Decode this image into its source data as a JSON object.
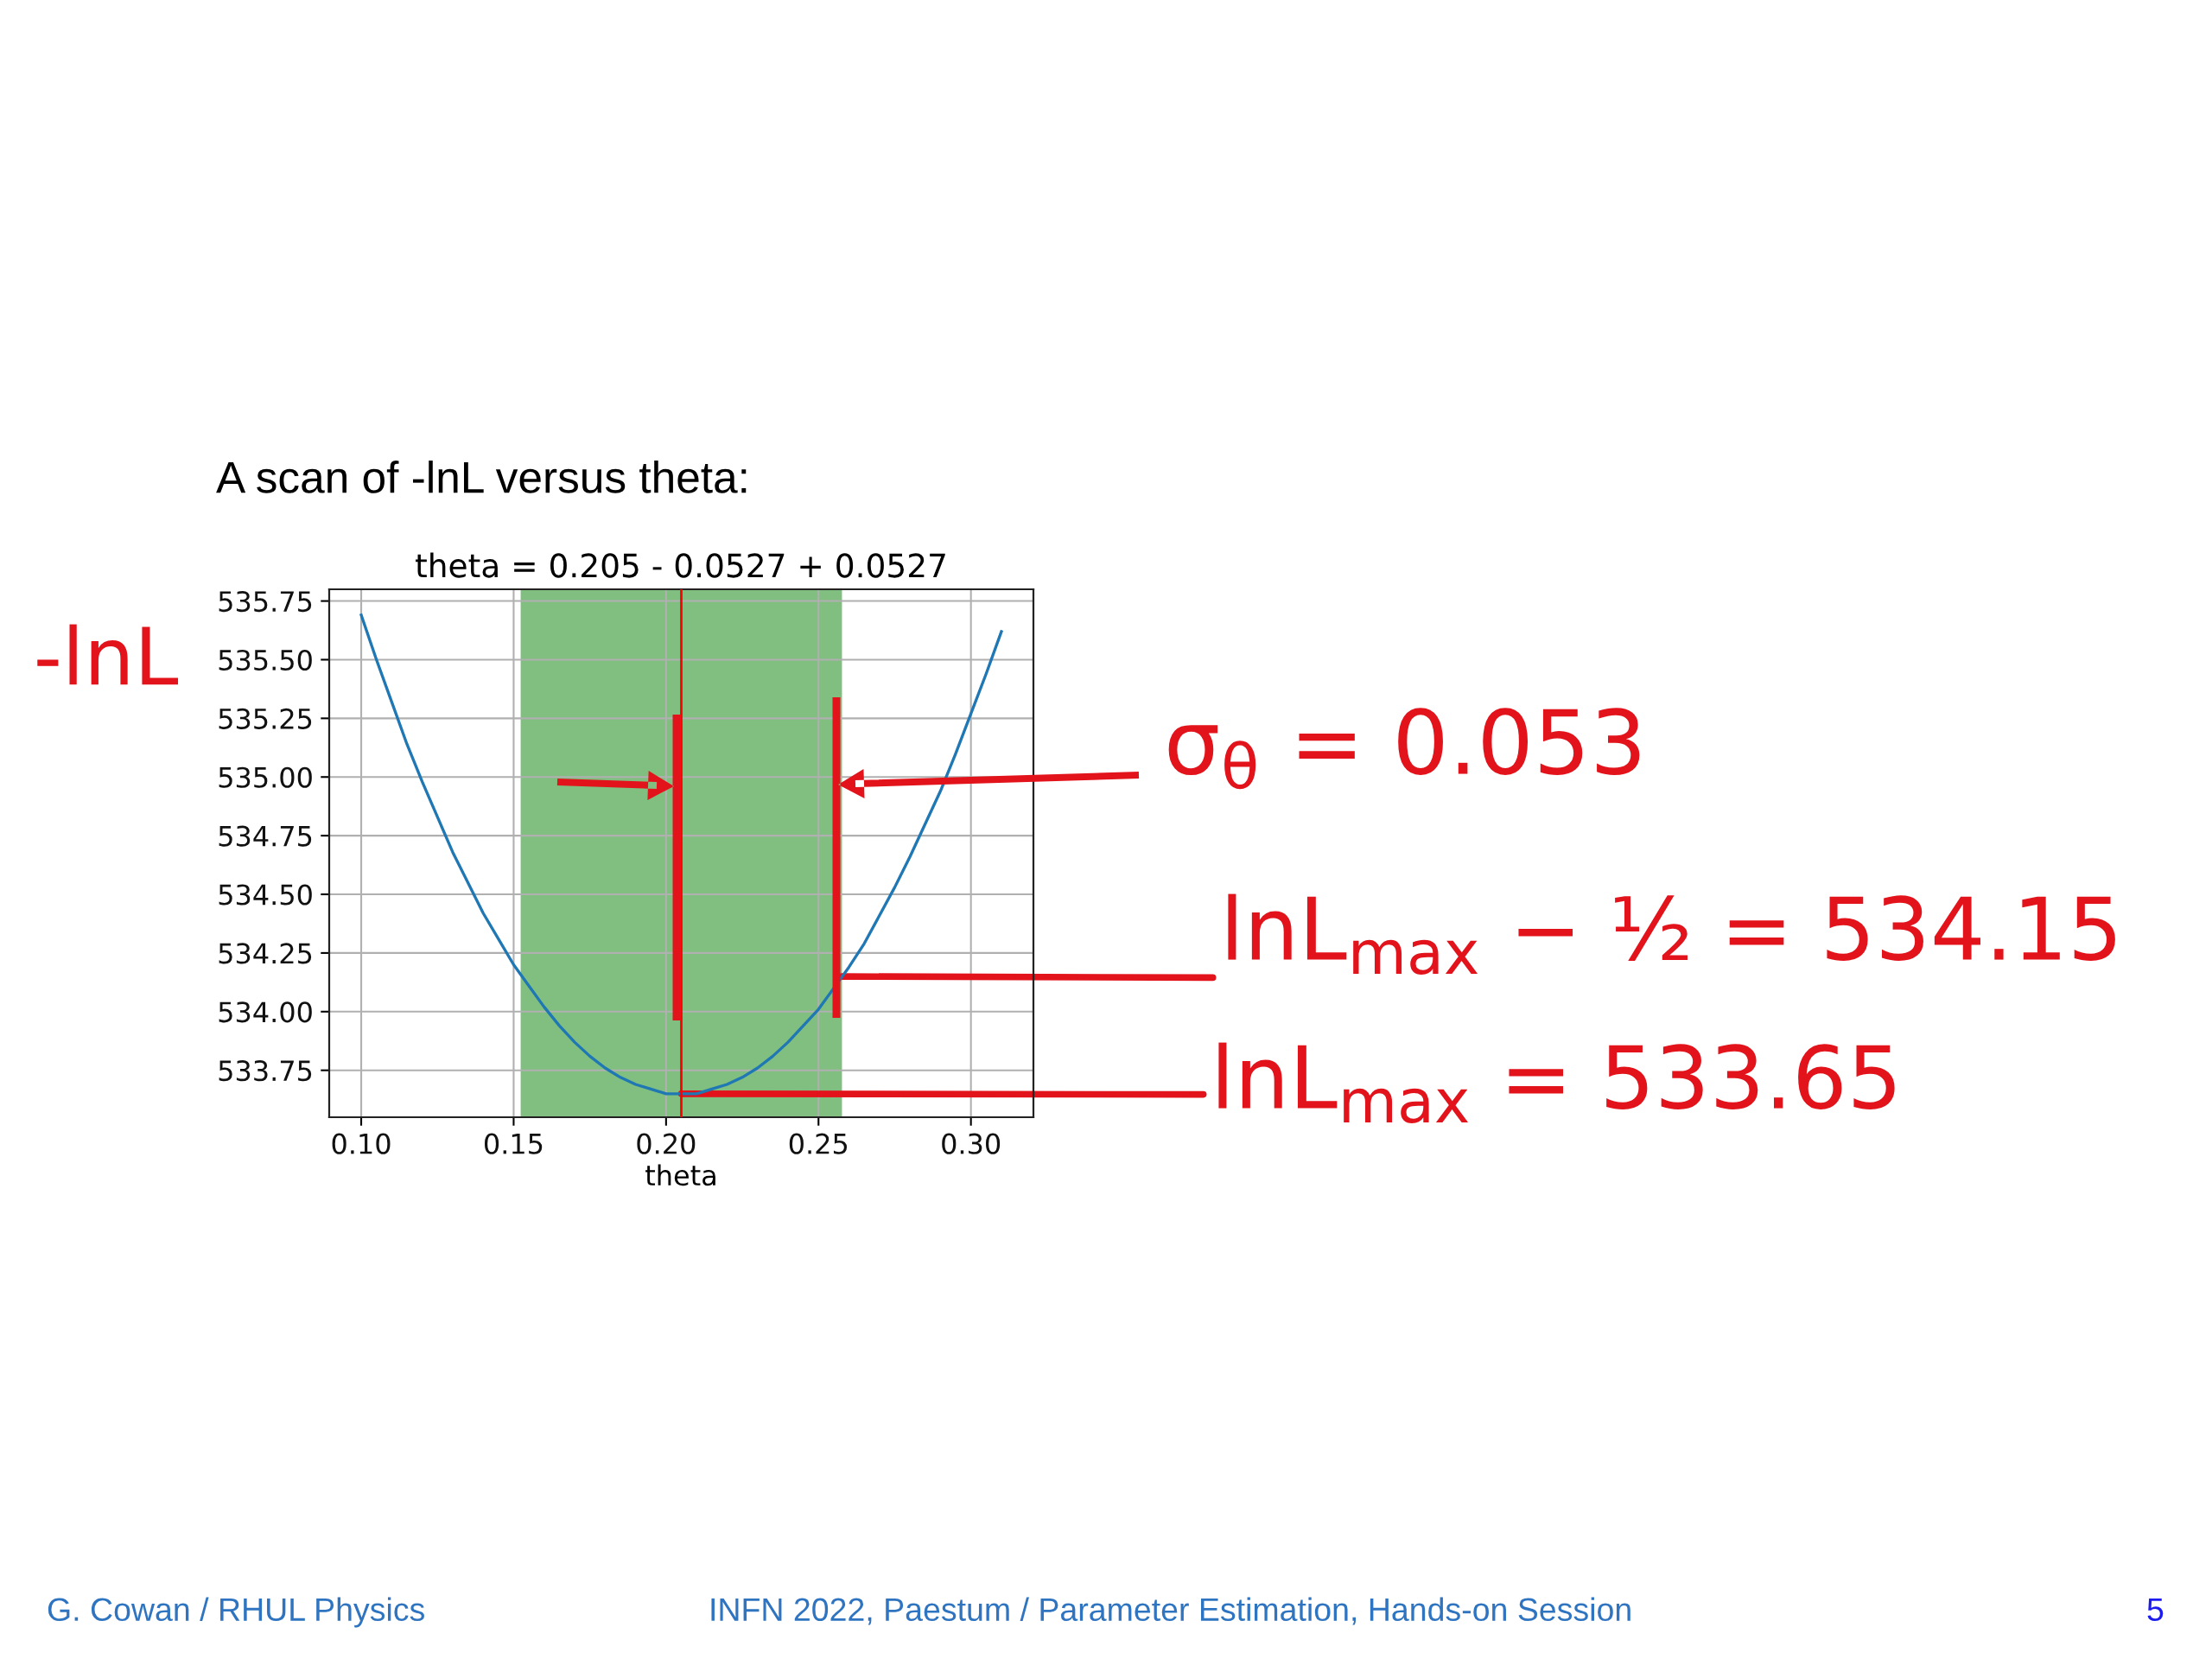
{
  "chart_data": {
    "type": "line",
    "title": "A scan of -lnL versus theta:",
    "subtitle": "theta = 0.205 - 0.0527 + 0.0527",
    "xlabel": "theta",
    "ylabel": "-lnL",
    "x": [
      0.1,
      0.105,
      0.11,
      0.115,
      0.12,
      0.125,
      0.13,
      0.135,
      0.14,
      0.145,
      0.15,
      0.155,
      0.16,
      0.165,
      0.17,
      0.175,
      0.18,
      0.185,
      0.19,
      0.195,
      0.2,
      0.205,
      0.21,
      0.215,
      0.22,
      0.225,
      0.23,
      0.235,
      0.24,
      0.245,
      0.25,
      0.255,
      0.26,
      0.265,
      0.27,
      0.275,
      0.28,
      0.285,
      0.29,
      0.295,
      0.3,
      0.305,
      0.31
    ],
    "series": [
      {
        "color": "#1f77b4",
        "values": [
          535.69,
          535.5,
          535.32,
          535.14,
          534.98,
          534.83,
          534.68,
          534.55,
          534.42,
          534.31,
          534.2,
          534.11,
          534.02,
          533.94,
          533.87,
          533.81,
          533.76,
          533.72,
          533.69,
          533.67,
          533.65,
          533.65,
          533.65,
          533.67,
          533.69,
          533.72,
          533.76,
          533.81,
          533.87,
          533.94,
          534.01,
          534.1,
          534.19,
          534.29,
          534.41,
          534.53,
          534.66,
          534.8,
          534.94,
          535.1,
          535.27,
          535.44,
          535.62
        ]
      }
    ],
    "xlim": [
      0.0895,
      0.3205
    ],
    "ylim": [
      533.55,
      535.8
    ],
    "xticks": [
      {
        "value": 0.1,
        "label": "0.10"
      },
      0.15,
      {
        "value": 0.2,
        "label": "0.20"
      },
      0.25,
      {
        "value": 0.3,
        "label": "0.30"
      }
    ],
    "yticks": [
      533.75,
      {
        "value": 534,
        "label": "534.00"
      },
      534.25,
      {
        "value": 534.5,
        "label": "534.50"
      },
      534.75,
      {
        "value": 535,
        "label": "535.00"
      },
      535.25,
      {
        "value": 535.5,
        "label": "535.50"
      },
      535.75
    ],
    "grid": true,
    "bands": [
      {
        "axis": "x",
        "from": 0.1523,
        "to": 0.2577,
        "color": "#80bf80"
      }
    ],
    "ref_lines": [
      {
        "axis": "x",
        "value": 0.205,
        "color": "#ff0000"
      }
    ],
    "annotations": [
      "σ$_{θ}$ = 0.053",
      {
        "text": "lnL$_{max}$ − ½ = 534.15",
        "x": 0.2577,
        "y": 534.15
      },
      {
        "text": "lnL$_{max}$ = 533.65",
        "x": 0.205,
        "y": 533.65
      },
      "G. Cowan / RHUL Physics",
      "INFN 2022, Paestum / Parameter Estimation, Hands-on Session",
      "5"
    ]
  }
}
